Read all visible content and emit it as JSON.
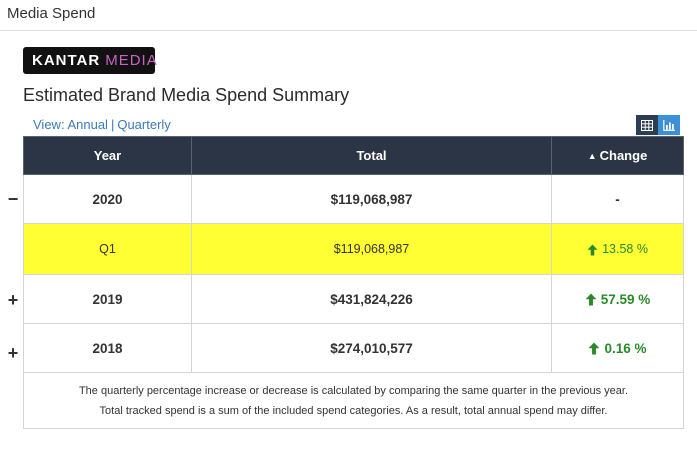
{
  "section": {
    "title": "Media Spend"
  },
  "logo": {
    "part1": "KANTAR",
    "part2": "MEDIA"
  },
  "summary_title": "Estimated Brand Media Spend Summary",
  "view": {
    "prefix": "View:",
    "annual": "Annual",
    "separator": "|",
    "quarterly": "Quarterly"
  },
  "view_buttons": {
    "table_icon": "table-icon",
    "chart_icon": "bar-chart-icon"
  },
  "table": {
    "headers": {
      "year": "Year",
      "total": "Total",
      "change": "Change"
    },
    "rows": [
      {
        "toggle": "−",
        "year": "2020",
        "total": "$119,068,987",
        "change": "-"
      },
      {
        "year": "Q1",
        "total": "$119,068,987",
        "change": "13.58 %"
      },
      {
        "toggle": "+",
        "year": "2019",
        "total": "$431,824,226",
        "change": "57.59 %"
      },
      {
        "toggle": "+",
        "year": "2018",
        "total": "$274,010,577",
        "change": "0.16 %"
      }
    ],
    "notes": [
      "The quarterly percentage increase or decrease is calculated by comparing the same quarter in the previous year.",
      "Total tracked spend is a sum of the included spend categories. As a result, total annual spend may differ."
    ]
  },
  "colors": {
    "header_bg": "#2c3545",
    "highlight": "#ffff33",
    "up": "#2a8a2a",
    "link": "#3d7ab5"
  }
}
